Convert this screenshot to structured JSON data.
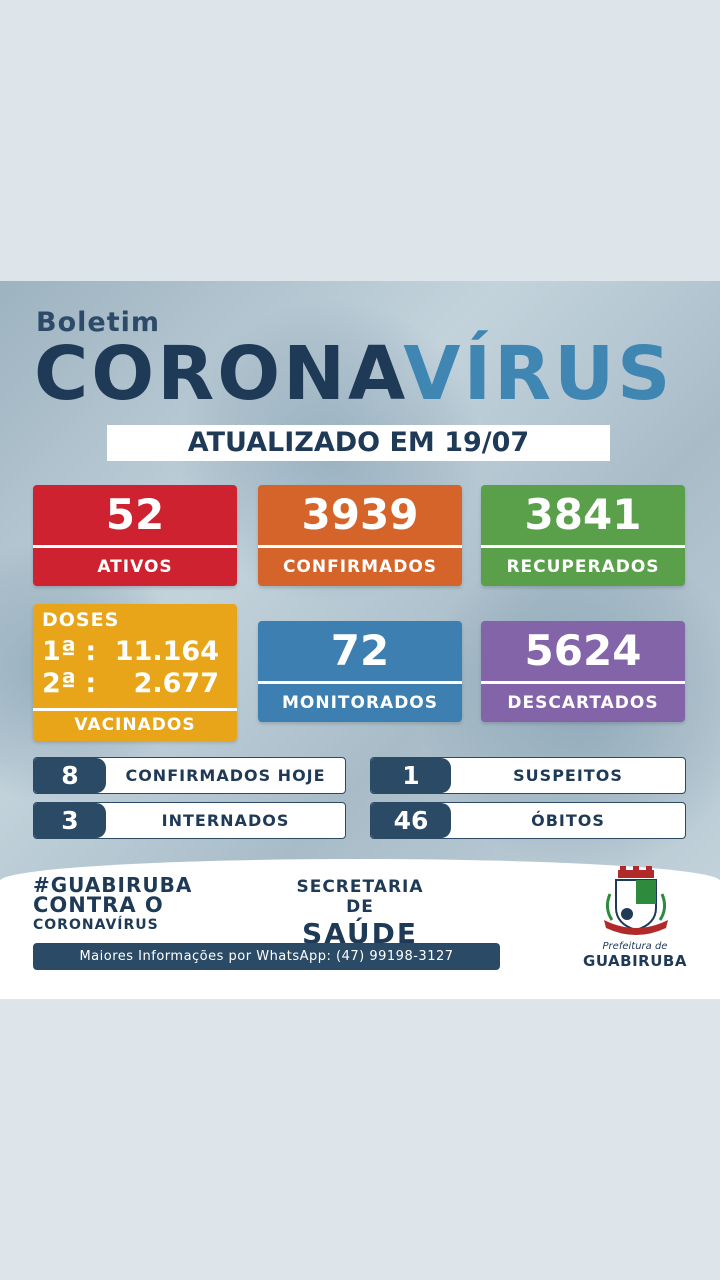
{
  "header": {
    "kicker": "Boletim",
    "title_part1": "CORONA",
    "title_part2": "VÍRUS",
    "updated": "ATUALIZADO EM 19/07"
  },
  "stats": {
    "ativos": {
      "value": "52",
      "label": "ATIVOS",
      "color": "#cf2230"
    },
    "confirmados": {
      "value": "3939",
      "label": "CONFIRMADOS",
      "color": "#d5642a"
    },
    "recuperados": {
      "value": "3841",
      "label": "RECUPERADOS",
      "color": "#5aa04b"
    },
    "monitorados": {
      "value": "72",
      "label": "MONITORADOS",
      "color": "#3d7fb0"
    },
    "descartados": {
      "value": "5624",
      "label": "DESCARTADOS",
      "color": "#8464a9"
    }
  },
  "doses": {
    "heading": "DOSES",
    "first_label": "1ª :",
    "first_value": "11.164",
    "second_label": "2ª :",
    "second_value": "2.677",
    "label": "VACINADOS",
    "color": "#e8a51a"
  },
  "pills": [
    {
      "value": "8",
      "label": "CONFIRMADOS HOJE"
    },
    {
      "value": "1",
      "label": "SUSPEITOS"
    },
    {
      "value": "3",
      "label": "INTERNADOS"
    },
    {
      "value": "46",
      "label": "ÓBITOS"
    }
  ],
  "footer": {
    "hashtag": "#GUABIRUBA",
    "contra": "CONTRA O",
    "coronavirus": "CORONAVÍRUS",
    "secretaria": "SECRETARIA DE",
    "saude": "SAÚDE",
    "whatsapp": "Maiores Informações por WhatsApp: (47) 99198-3127",
    "prefeitura": "Prefeitura de",
    "city": "GUABIRUBA",
    "logo_icon": "coat-of-arms-icon"
  },
  "colors": {
    "navy": "#1f3a57",
    "accent_blue": "#3f86b3"
  }
}
